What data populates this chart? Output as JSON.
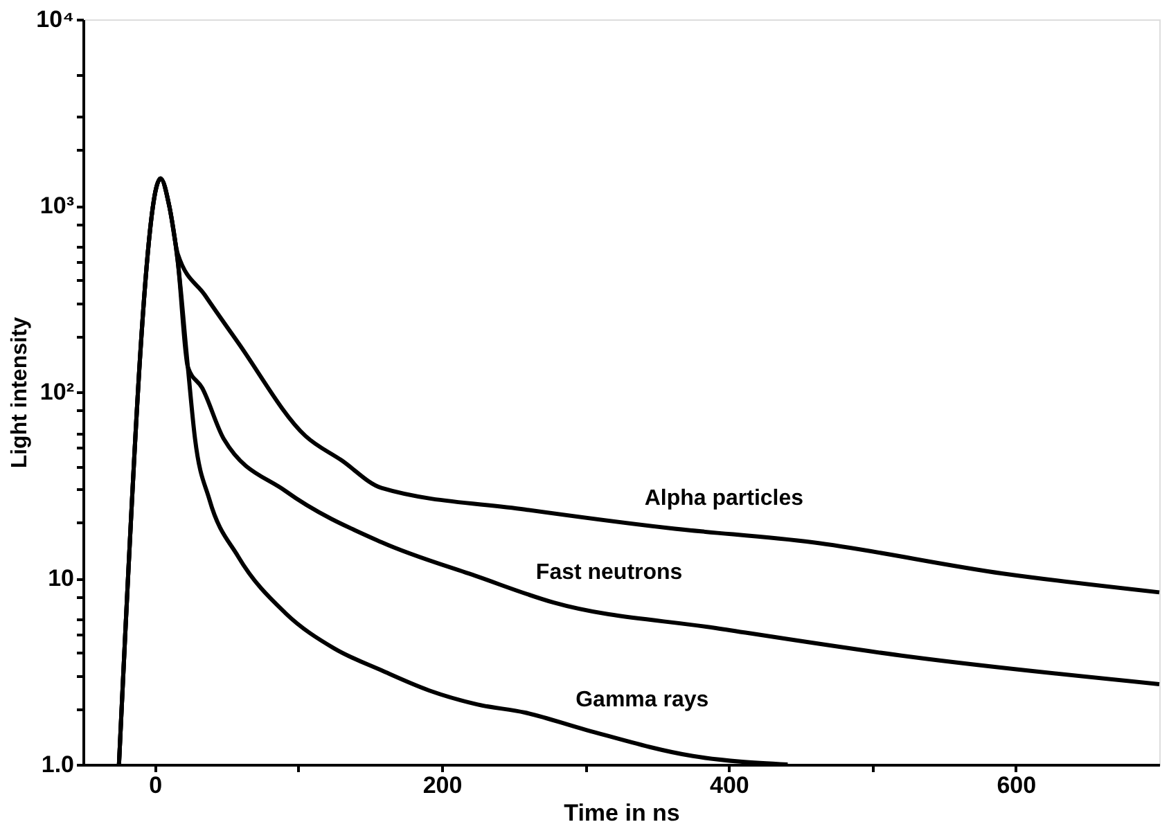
{
  "chart_data": {
    "type": "line",
    "xlabel": "Time in ns",
    "ylabel": "Light intensity",
    "log": "y",
    "xlim": [
      -50,
      700
    ],
    "xticks": [
      {
        "value": 0,
        "label": "0"
      },
      {
        "value": 100,
        "label": null
      },
      200,
      {
        "value": 300,
        "label": null
      },
      400,
      {
        "value": 500,
        "label": null
      },
      600
    ],
    "ylim": [
      1,
      10000
    ],
    "yticks": [
      {
        "value": 1,
        "label": "1.0"
      },
      {
        "value": 2,
        "label": null
      },
      {
        "value": 3,
        "label": null
      },
      {
        "value": 4,
        "label": null
      },
      {
        "value": 5,
        "label": null
      },
      {
        "value": 6,
        "label": null
      },
      {
        "value": 8,
        "label": null
      },
      10,
      {
        "value": 20,
        "label": null
      },
      {
        "value": 30,
        "label": null
      },
      {
        "value": 40,
        "label": null
      },
      {
        "value": 50,
        "label": null
      },
      {
        "value": 60,
        "label": null
      },
      {
        "value": 80,
        "label": null
      },
      {
        "value": 100,
        "label": "10²"
      },
      {
        "value": 200,
        "label": null
      },
      {
        "value": 300,
        "label": null
      },
      {
        "value": 400,
        "label": null
      },
      {
        "value": 500,
        "label": null
      },
      {
        "value": 600,
        "label": null
      },
      {
        "value": 800,
        "label": null
      },
      {
        "value": 1000,
        "label": "10³"
      },
      {
        "value": 2000,
        "label": null
      },
      {
        "value": 3000,
        "label": null
      },
      {
        "value": 5000,
        "label": null
      },
      {
        "value": 10000,
        "label": "10⁴"
      }
    ],
    "grid": false,
    "legend": false,
    "marker": "none",
    "line_style": "solid",
    "series": [
      {
        "name": "Alpha particles",
        "color": "#000000",
        "x": [
          -25,
          4,
          10,
          16,
          35,
          58,
          105,
          130,
          158,
          258,
          358,
          458,
          591,
          700
        ],
        "values": [
          1,
          1400,
          1000,
          550,
          330,
          184,
          58,
          43,
          30.5,
          23.4,
          18.6,
          15.6,
          10.6,
          8.4
        ]
      },
      {
        "name": "Fast neutrons",
        "color": "#000000",
        "x": [
          -25,
          4,
          10,
          16,
          23,
          33,
          48,
          91,
          158,
          225,
          278,
          391,
          525,
          700
        ],
        "values": [
          1,
          1400,
          1000,
          500,
          136,
          105,
          56,
          29.4,
          15.6,
          10.2,
          7.4,
          5.4,
          3.8,
          2.7
        ]
      },
      {
        "name": "Gamma rays",
        "color": "#000000",
        "x": [
          -25,
          4,
          10,
          16,
          23,
          28,
          38,
          58,
          91,
          125,
          158,
          191,
          225,
          258,
          301,
          375,
          441
        ],
        "values": [
          1,
          1400,
          1000,
          500,
          136,
          56,
          26.5,
          13.1,
          6.5,
          4.2,
          3.2,
          2.5,
          2.1,
          1.9,
          1.53,
          1.11,
          1
        ]
      }
    ]
  }
}
